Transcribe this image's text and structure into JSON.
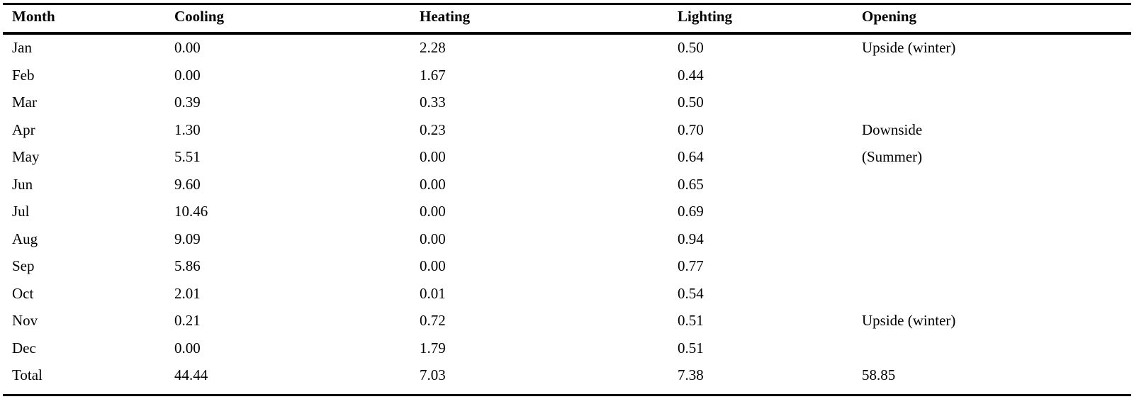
{
  "table": {
    "headers": [
      "Month",
      "Cooling",
      "Heating",
      "Lighting",
      "Opening"
    ],
    "rows": [
      [
        "Jan",
        "0.00",
        "2.28",
        "0.50",
        "Upside (winter)"
      ],
      [
        "Feb",
        "0.00",
        "1.67",
        "0.44",
        ""
      ],
      [
        "Mar",
        "0.39",
        "0.33",
        "0.50",
        ""
      ],
      [
        "Apr",
        "1.30",
        "0.23",
        "0.70",
        "Downside"
      ],
      [
        "May",
        "5.51",
        "0.00",
        "0.64",
        "(Summer)"
      ],
      [
        "Jun",
        "9.60",
        "0.00",
        "0.65",
        ""
      ],
      [
        "Jul",
        "10.46",
        "0.00",
        "0.69",
        ""
      ],
      [
        "Aug",
        "9.09",
        "0.00",
        "0.94",
        ""
      ],
      [
        "Sep",
        "5.86",
        "0.00",
        "0.77",
        ""
      ],
      [
        "Oct",
        "2.01",
        "0.01",
        "0.54",
        ""
      ],
      [
        "Nov",
        "0.21",
        "0.72",
        "0.51",
        "Upside (winter)"
      ],
      [
        "Dec",
        "0.00",
        "1.79",
        "0.51",
        ""
      ],
      [
        "Total",
        "44.44",
        "7.03",
        "7.38",
        "58.85"
      ]
    ]
  }
}
